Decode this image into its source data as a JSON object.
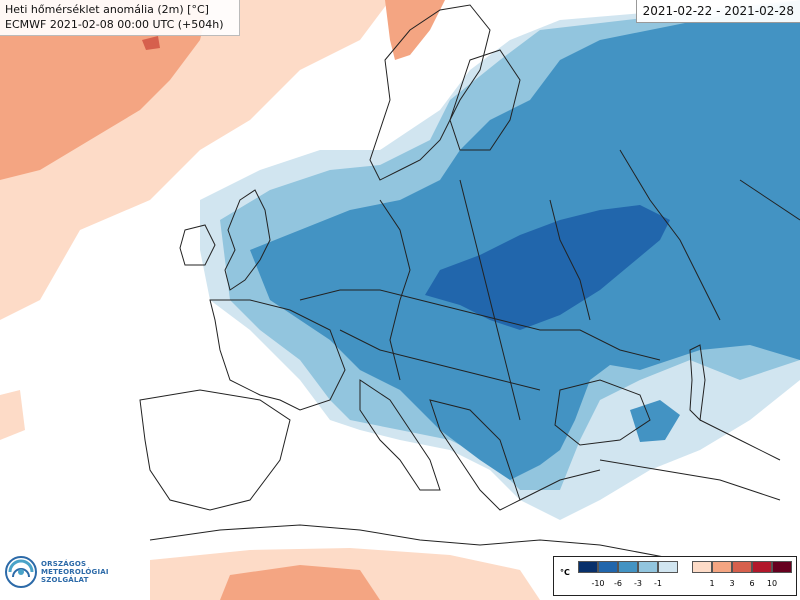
{
  "title": {
    "line1": "Heti hőmérséklet anomália (2m) [°C]",
    "line2": "ECMWF 2021-02-08 00:00 UTC (+504h)"
  },
  "period": "2021-02-22 - 2021-02-28",
  "logo": {
    "line1": "ORSZÁGOS",
    "line2": "METEOROLÓGIAI",
    "line3": "SZOLGÁLAT"
  },
  "legend": {
    "unit": "°C",
    "cold_colors": [
      "#08306b",
      "#2166ac",
      "#4393c3",
      "#92c5de",
      "#d1e5f0"
    ],
    "warm_colors": [
      "#fddbc7",
      "#f4a582",
      "#d6604d",
      "#b2182b",
      "#67001f"
    ],
    "cold_ticks": [
      "-10",
      "-6",
      "-3",
      "-1"
    ],
    "warm_ticks": [
      "1",
      "3",
      "6",
      "10"
    ]
  },
  "colors": {
    "anomaly_very_cold": "#2166ac",
    "anomaly_cold": "#4393c3",
    "anomaly_cool": "#92c5de",
    "anomaly_slightly_cool": "#d1e5f0",
    "anomaly_slightly_warm": "#fddbc7",
    "anomaly_warm": "#f4a582",
    "anomaly_hot": "#d6604d",
    "coastline": "#222222"
  }
}
